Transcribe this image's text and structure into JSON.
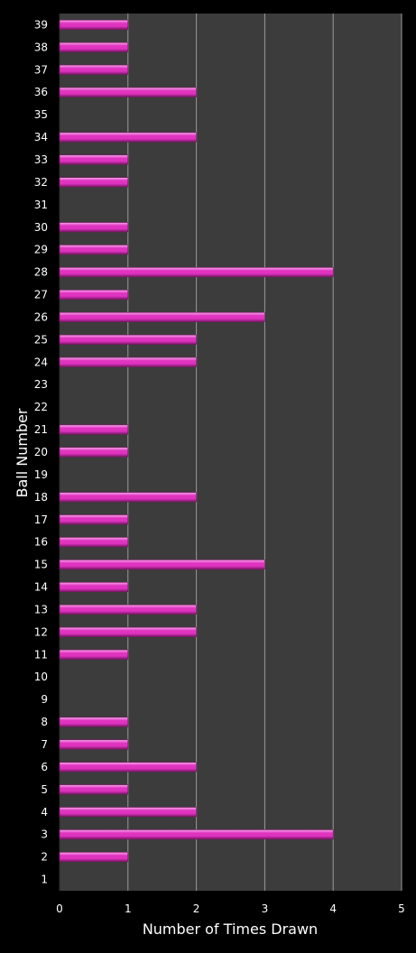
{
  "colors": {
    "background": "#000000",
    "plot_area": "#3c3c3c",
    "gridline": "#9a9a9a",
    "bar": "#e033c0",
    "bar_highlight": "#f7a9ea",
    "bar_shadow": "#7a1666",
    "text": "#ffffff"
  },
  "chart_data": {
    "type": "bar",
    "orientation": "horizontal",
    "title": "",
    "xlabel": "Number of Times Drawn",
    "ylabel": "Ball Number",
    "xlim": [
      0,
      5
    ],
    "xticks": [
      "0",
      "1",
      "2",
      "3",
      "4",
      "5"
    ],
    "grid": true,
    "legend": "none",
    "categories": [
      "1",
      "2",
      "3",
      "4",
      "5",
      "6",
      "7",
      "8",
      "9",
      "10",
      "11",
      "12",
      "13",
      "14",
      "15",
      "16",
      "17",
      "18",
      "19",
      "20",
      "21",
      "22",
      "23",
      "24",
      "25",
      "26",
      "27",
      "28",
      "29",
      "30",
      "31",
      "32",
      "33",
      "34",
      "35",
      "36",
      "37",
      "38",
      "39"
    ],
    "values": [
      0,
      1,
      4,
      2,
      1,
      2,
      1,
      1,
      0,
      0,
      1,
      2,
      2,
      1,
      3,
      1,
      1,
      2,
      0,
      1,
      1,
      0,
      0,
      2,
      2,
      3,
      1,
      4,
      1,
      1,
      0,
      1,
      1,
      2,
      0,
      2,
      1,
      1,
      1
    ]
  }
}
